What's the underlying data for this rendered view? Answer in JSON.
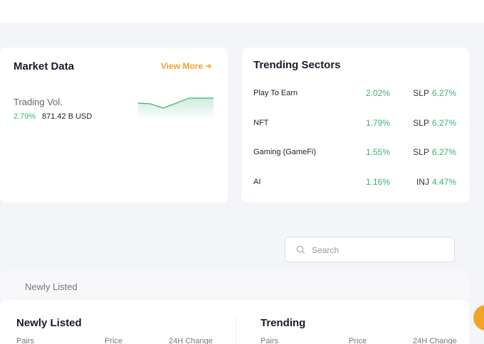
{
  "market_data": {
    "title": "Market Data",
    "view_more": "View More",
    "label": "Trading Vol.",
    "change": "2.79%",
    "volume": "871.42 B USD"
  },
  "trending_sectors": {
    "title": "Trending Sectors",
    "rows": [
      {
        "name": "Play To Earn",
        "change": "2.02%",
        "token": "SLP",
        "token_change": "6.27%"
      },
      {
        "name": "NFT",
        "change": "1.79%",
        "token": "SLP",
        "token_change": "6.27%"
      },
      {
        "name": "Gaming (GameFi)",
        "change": "1.55%",
        "token": "SLP",
        "token_change": "6.27%"
      },
      {
        "name": "AI",
        "change": "1.16%",
        "token": "INJ",
        "token_change": "4.47%"
      }
    ]
  },
  "search": {
    "placeholder": "Search"
  },
  "tabs": [
    "Newly Listed"
  ],
  "panels": [
    {
      "title": "Newly Listed",
      "columns": [
        "Pairs",
        "Price",
        "24H Change"
      ]
    },
    {
      "title": "Trending",
      "columns": [
        "Pairs",
        "Price",
        "24H Change"
      ]
    }
  ]
}
